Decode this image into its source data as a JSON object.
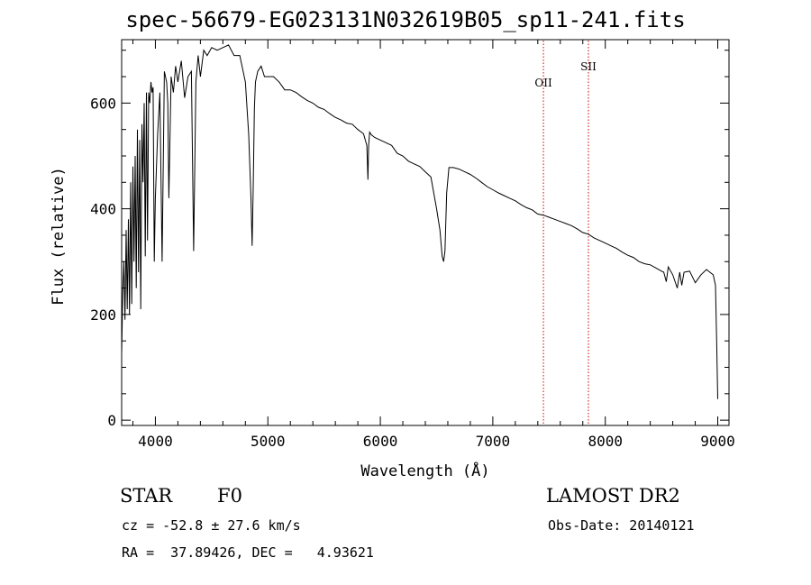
{
  "header": {
    "title": "spec-56679-EG023131N032619B05_sp11-241.fits"
  },
  "chart_data": {
    "type": "line",
    "xlabel": "Wavelength (Å)",
    "ylabel": "Flux (relative)",
    "xlim": [
      3700,
      9100
    ],
    "ylim": [
      -10,
      720
    ],
    "xticks": [
      4000,
      5000,
      6000,
      7000,
      8000,
      9000
    ],
    "yticks": [
      0,
      200,
      400,
      600
    ],
    "grid": false,
    "series_color": "#000000",
    "line_color": "#cc0000",
    "lines": [
      {
        "label": "OII",
        "x": 7450
      },
      {
        "label": "SII",
        "x": 7850
      }
    ],
    "series": [
      {
        "x": [
          3700,
          3710,
          3720,
          3730,
          3740,
          3750,
          3760,
          3770,
          3780,
          3790,
          3800,
          3810,
          3820,
          3830,
          3840,
          3850,
          3860,
          3870,
          3880,
          3890,
          3900,
          3910,
          3920,
          3930,
          3940,
          3950,
          3960,
          3970,
          3980,
          3990,
          4000,
          4020,
          4040,
          4060,
          4080,
          4100,
          4110,
          4120,
          4140,
          4160,
          4180,
          4200,
          4230,
          4260,
          4290,
          4320,
          4340,
          4360,
          4380,
          4400,
          4430,
          4460,
          4500,
          4550,
          4600,
          4650,
          4700,
          4750,
          4800,
          4830,
          4850,
          4860,
          4870,
          4880,
          4890,
          4910,
          4940,
          4970,
          5000,
          5050,
          5100,
          5150,
          5200,
          5250,
          5300,
          5350,
          5400,
          5450,
          5500,
          5550,
          5600,
          5650,
          5700,
          5750,
          5800,
          5850,
          5880,
          5890,
          5896,
          5905,
          5920,
          5950,
          6000,
          6050,
          6100,
          6150,
          6200,
          6250,
          6300,
          6350,
          6400,
          6450,
          6500,
          6530,
          6550,
          6563,
          6575,
          6590,
          6610,
          6650,
          6700,
          6750,
          6800,
          6850,
          6900,
          6950,
          7000,
          7050,
          7100,
          7150,
          7200,
          7250,
          7300,
          7350,
          7400,
          7450,
          7500,
          7550,
          7600,
          7650,
          7700,
          7750,
          7800,
          7850,
          7900,
          7950,
          8000,
          8050,
          8100,
          8150,
          8200,
          8250,
          8300,
          8350,
          8400,
          8450,
          8500,
          8520,
          8542,
          8560,
          8600,
          8640,
          8662,
          8680,
          8700,
          8750,
          8800,
          8850,
          8900,
          8930,
          8960,
          8980,
          8990,
          9000
        ],
        "values": [
          125,
          240,
          300,
          190,
          360,
          210,
          380,
          200,
          450,
          220,
          480,
          300,
          500,
          250,
          550,
          280,
          530,
          210,
          560,
          450,
          600,
          310,
          620,
          340,
          620,
          600,
          640,
          620,
          630,
          300,
          420,
          540,
          620,
          300,
          660,
          640,
          600,
          420,
          650,
          620,
          670,
          640,
          680,
          610,
          650,
          660,
          320,
          640,
          690,
          650,
          700,
          690,
          705,
          700,
          705,
          710,
          690,
          690,
          640,
          540,
          420,
          330,
          440,
          590,
          640,
          660,
          670,
          650,
          650,
          650,
          640,
          625,
          625,
          620,
          612,
          605,
          600,
          592,
          588,
          580,
          573,
          568,
          562,
          560,
          550,
          542,
          520,
          455,
          520,
          545,
          540,
          535,
          530,
          525,
          520,
          505,
          500,
          490,
          485,
          480,
          470,
          460,
          400,
          360,
          310,
          300,
          320,
          430,
          478,
          478,
          475,
          470,
          465,
          458,
          450,
          442,
          436,
          430,
          425,
          420,
          415,
          408,
          402,
          398,
          390,
          388,
          384,
          380,
          376,
          372,
          368,
          362,
          355,
          352,
          345,
          340,
          335,
          330,
          325,
          318,
          312,
          308,
          300,
          296,
          294,
          288,
          282,
          280,
          262,
          290,
          275,
          250,
          280,
          255,
          280,
          282,
          260,
          275,
          285,
          280,
          275,
          255,
          150,
          40
        ]
      }
    ]
  },
  "footer": {
    "class_label": "STAR",
    "subclass_label": "F0",
    "survey_label": "LAMOST DR2",
    "cz_text": "cz = -52.8 ± 27.6 km/s",
    "obs_date_text": "Obs-Date: 20140121",
    "radec_text": "RA =  37.89426, DEC =   4.93621"
  }
}
